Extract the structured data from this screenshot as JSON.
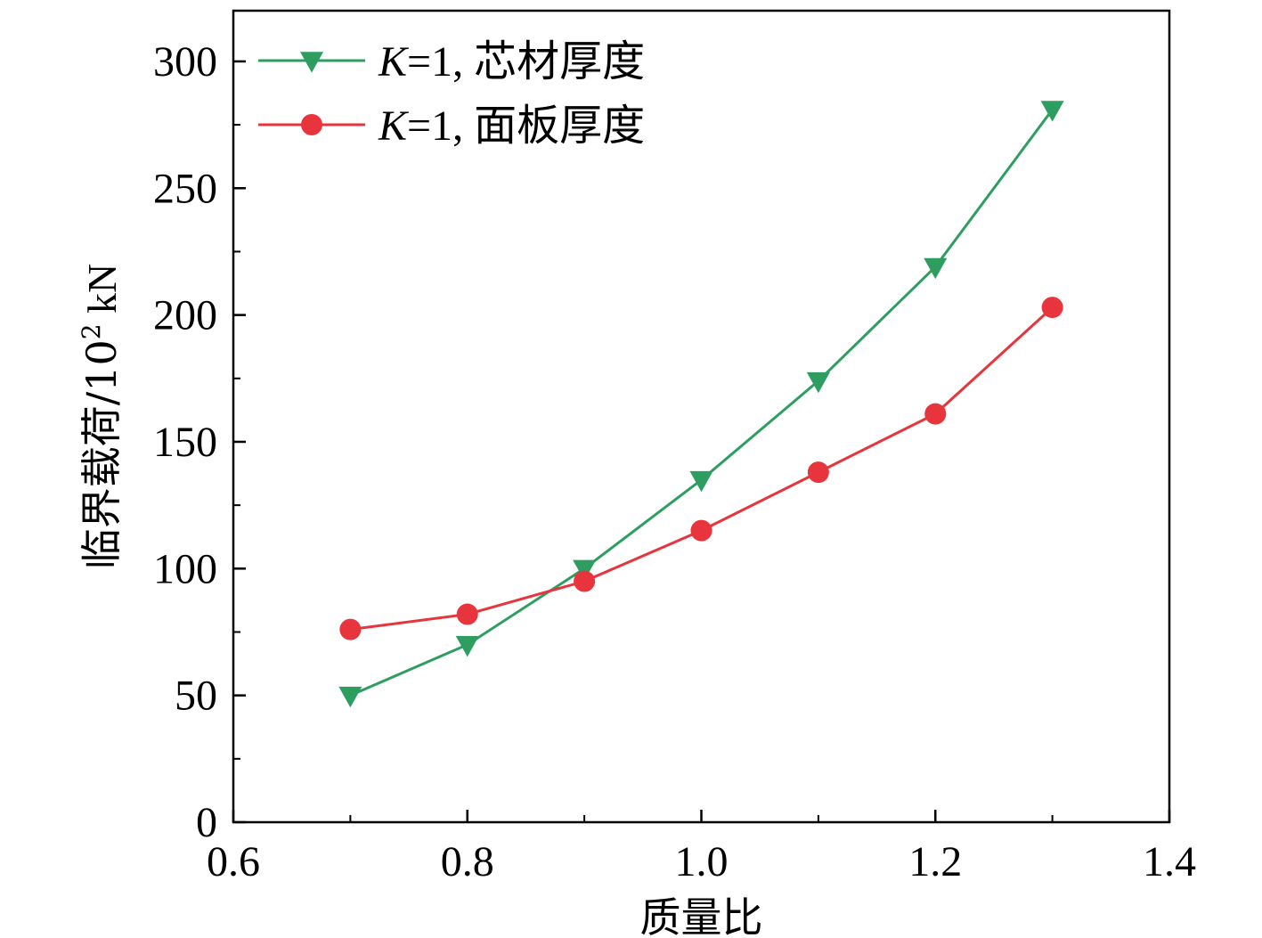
{
  "chart_data": {
    "type": "line",
    "title": "",
    "xlabel": "质量比",
    "ylabel_main": "临界载荷/10",
    "ylabel_sup": "2",
    "ylabel_unit": " kN",
    "xlim": [
      0.6,
      1.4
    ],
    "ylim": [
      0,
      320
    ],
    "xticks": [
      0.6,
      0.8,
      1.0,
      1.2,
      1.4
    ],
    "xtick_labels": [
      "0.6",
      "0.8",
      "1.0",
      "1.2",
      "1.4"
    ],
    "yticks": [
      0,
      50,
      100,
      150,
      200,
      250,
      300
    ],
    "ytick_labels": [
      "0",
      "50",
      "100",
      "150",
      "200",
      "250",
      "300"
    ],
    "grid": false,
    "legend_position": "top-left",
    "series": [
      {
        "name": "K=1, 芯材厚度",
        "legend_var": "K",
        "legend_rest": "=1, ",
        "legend_cn": "芯材厚度",
        "marker": "triangle-down",
        "color": "#2e9e60",
        "x": [
          0.7,
          0.8,
          0.9,
          1.0,
          1.1,
          1.2,
          1.3
        ],
        "values": [
          50,
          70,
          100,
          135,
          174,
          219,
          281
        ]
      },
      {
        "name": "K=1, 面板厚度",
        "legend_var": "K",
        "legend_rest": "=1, ",
        "legend_cn": "面板厚度",
        "marker": "circle",
        "color": "#e8343c",
        "x": [
          0.7,
          0.8,
          0.9,
          1.0,
          1.1,
          1.2,
          1.3
        ],
        "values": [
          76,
          82,
          95,
          115,
          138,
          161,
          203
        ]
      }
    ]
  }
}
